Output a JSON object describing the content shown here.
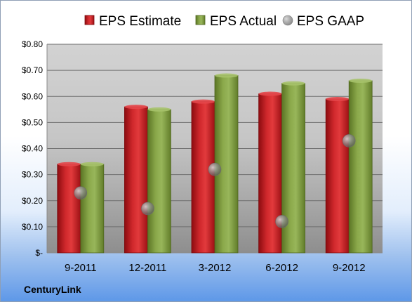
{
  "chart_data": {
    "type": "bar",
    "categories": [
      "9-2011",
      "12-2011",
      "3-2012",
      "6-2012",
      "9-2012"
    ],
    "series": [
      {
        "name": "EPS Estimate",
        "kind": "bar",
        "color": "#c0161b",
        "values": [
          0.34,
          0.56,
          0.58,
          0.61,
          0.59
        ]
      },
      {
        "name": "EPS Actual",
        "kind": "bar",
        "color": "#7d9b3a",
        "values": [
          0.34,
          0.55,
          0.68,
          0.65,
          0.66
        ]
      },
      {
        "name": "EPS GAAP",
        "kind": "marker",
        "color": "#9a9a9a",
        "values": [
          0.23,
          0.17,
          0.32,
          0.12,
          0.43
        ]
      }
    ],
    "ylim": [
      0,
      0.8
    ],
    "yticks": [
      0,
      0.1,
      0.2,
      0.3,
      0.4,
      0.5,
      0.6,
      0.7,
      0.8
    ],
    "ytick_labels": [
      "$-",
      "$0.10",
      "$0.20",
      "$0.30",
      "$0.40",
      "$0.50",
      "$0.60",
      "$0.70",
      "$0.80"
    ],
    "grid": true,
    "legend_position": "top",
    "xlabel": "",
    "ylabel": ""
  },
  "branding": {
    "company": "CenturyLink"
  }
}
